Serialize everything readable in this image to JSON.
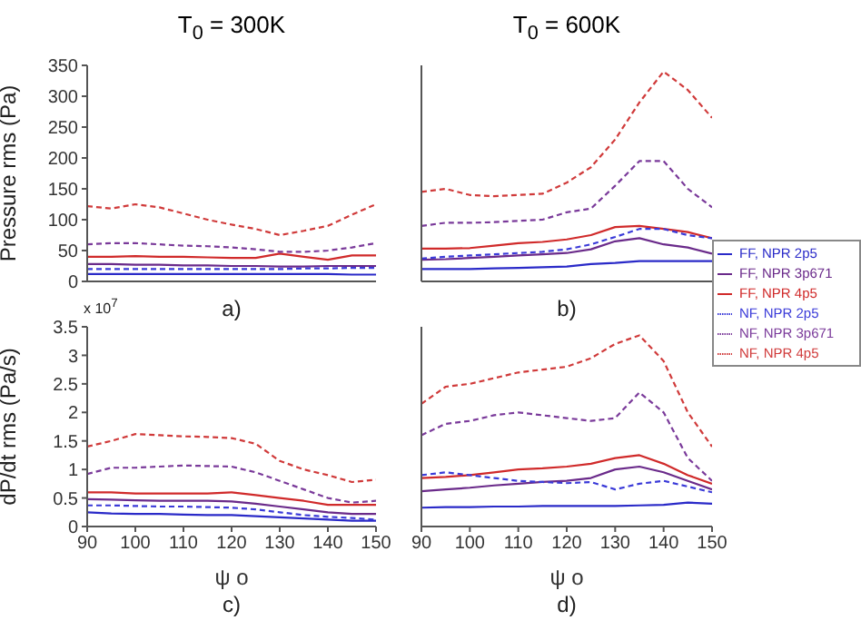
{
  "chart_data": [
    {
      "type": "line",
      "title": "T$_{0}$ = 300K",
      "ylabel": "Pressure rms (Pa)",
      "annotations": [
        "a)"
      ],
      "tick_labels": "y",
      "x": [
        90,
        95,
        100,
        105,
        110,
        115,
        120,
        125,
        130,
        135,
        140,
        145,
        150
      ],
      "xlim": [
        90,
        150
      ],
      "xticks": [
        90,
        100,
        110,
        120,
        130,
        140,
        150
      ],
      "ylim": [
        0,
        350
      ],
      "yticks": [
        0,
        50,
        100,
        150,
        200,
        250,
        300,
        350
      ],
      "series": [
        {
          "color": "#2a2ac8",
          "line_style": "solid",
          "values": [
            12,
            12,
            12,
            12,
            12,
            12,
            12,
            12,
            12,
            12,
            12,
            11,
            11
          ]
        },
        {
          "color": "#6a2a8a",
          "line_style": "solid",
          "values": [
            28,
            28,
            27,
            27,
            26,
            26,
            25,
            25,
            24,
            24,
            25,
            25,
            25
          ]
        },
        {
          "color": "#d02a2a",
          "line_style": "solid",
          "values": [
            40,
            40,
            41,
            40,
            40,
            39,
            38,
            38,
            45,
            40,
            35,
            42,
            42
          ]
        },
        {
          "color": "#3a3ad8",
          "line_style": "dashed",
          "values": [
            20,
            20,
            20,
            20,
            20,
            20,
            20,
            20,
            20,
            21,
            21,
            22,
            22
          ]
        },
        {
          "color": "#7a3a9a",
          "line_style": "dashed",
          "values": [
            60,
            62,
            62,
            60,
            58,
            57,
            55,
            52,
            48,
            48,
            50,
            55,
            62
          ]
        },
        {
          "color": "#d03a3a",
          "line_style": "dashed",
          "values": [
            122,
            118,
            125,
            120,
            110,
            100,
            92,
            85,
            75,
            82,
            90,
            108,
            125
          ]
        }
      ]
    },
    {
      "type": "line",
      "title": "T$_{0}$ = 600K",
      "annotations": [
        "b)"
      ],
      "tick_labels": false,
      "legend": "right",
      "x": [
        90,
        95,
        100,
        105,
        110,
        115,
        120,
        125,
        130,
        135,
        140,
        145,
        150
      ],
      "xlim": [
        90,
        150
      ],
      "xticks": [
        90,
        100,
        110,
        120,
        130,
        140,
        150
      ],
      "ylim": [
        0,
        350
      ],
      "yticks": [
        0,
        50,
        100,
        150,
        200,
        250,
        300,
        350
      ],
      "series": [
        {
          "name": "FF, NPR 2p5",
          "color": "#2a2ac8",
          "line_style": "solid",
          "values": [
            20,
            20,
            20,
            21,
            22,
            23,
            24,
            28,
            30,
            33,
            33,
            33,
            33
          ]
        },
        {
          "name": "FF, NPR 3p671",
          "color": "#6a2a8a",
          "line_style": "solid",
          "values": [
            35,
            36,
            38,
            40,
            42,
            44,
            46,
            52,
            65,
            70,
            60,
            55,
            45
          ]
        },
        {
          "name": "FF, NPR 4p5",
          "color": "#d02a2a",
          "line_style": "solid",
          "values": [
            53,
            53,
            54,
            58,
            62,
            64,
            68,
            75,
            88,
            90,
            85,
            80,
            70
          ]
        },
        {
          "name": "NF, NPR 2p5",
          "color": "#3a3ad8",
          "line_style": "dashed",
          "values": [
            37,
            40,
            42,
            44,
            46,
            48,
            52,
            60,
            72,
            85,
            85,
            75,
            70
          ]
        },
        {
          "name": "NF, NPR 3p671",
          "color": "#7a3a9a",
          "line_style": "dashed",
          "values": [
            90,
            95,
            95,
            96,
            98,
            100,
            112,
            118,
            155,
            195,
            195,
            150,
            120
          ]
        },
        {
          "name": "NF, NPR 4p5",
          "color": "#d03a3a",
          "line_style": "dashed",
          "values": [
            145,
            150,
            140,
            138,
            140,
            142,
            160,
            185,
            230,
            290,
            340,
            310,
            265
          ]
        }
      ]
    },
    {
      "type": "line",
      "xlabel": "ψ o",
      "ylabel": "dP/dt rms (Pa/s)",
      "annotations": [
        "x 10$^{7}$",
        "c)"
      ],
      "x": [
        90,
        95,
        100,
        105,
        110,
        115,
        120,
        125,
        130,
        135,
        140,
        145,
        150
      ],
      "xlim": [
        90,
        150
      ],
      "xticks": [
        90,
        100,
        110,
        120,
        130,
        140,
        150
      ],
      "ylim": [
        0,
        3.5
      ],
      "yticks": [
        0,
        0.5,
        1,
        1.5,
        2,
        2.5,
        3,
        3.5
      ],
      "series": [
        {
          "color": "#2a2ac8",
          "line_style": "solid",
          "values": [
            0.25,
            0.23,
            0.22,
            0.22,
            0.21,
            0.2,
            0.2,
            0.18,
            0.16,
            0.14,
            0.12,
            0.1,
            0.1
          ]
        },
        {
          "color": "#6a2a8a",
          "line_style": "solid",
          "values": [
            0.48,
            0.47,
            0.46,
            0.45,
            0.45,
            0.45,
            0.44,
            0.4,
            0.35,
            0.3,
            0.25,
            0.22,
            0.22
          ]
        },
        {
          "color": "#d02a2a",
          "line_style": "solid",
          "values": [
            0.6,
            0.6,
            0.58,
            0.58,
            0.58,
            0.58,
            0.6,
            0.55,
            0.5,
            0.45,
            0.38,
            0.38,
            0.38
          ]
        },
        {
          "color": "#3a3ad8",
          "line_style": "dashed",
          "values": [
            0.37,
            0.37,
            0.36,
            0.35,
            0.35,
            0.34,
            0.33,
            0.3,
            0.25,
            0.2,
            0.17,
            0.15,
            0.12
          ]
        },
        {
          "color": "#7a3a9a",
          "line_style": "dashed",
          "values": [
            0.92,
            1.03,
            1.03,
            1.05,
            1.07,
            1.06,
            1.05,
            0.95,
            0.8,
            0.65,
            0.5,
            0.42,
            0.45
          ]
        },
        {
          "color": "#d03a3a",
          "line_style": "dashed",
          "values": [
            1.4,
            1.5,
            1.62,
            1.6,
            1.58,
            1.57,
            1.55,
            1.45,
            1.15,
            1,
            0.9,
            0.78,
            0.82
          ]
        }
      ]
    },
    {
      "type": "line",
      "xlabel": "ψ o",
      "annotations": [
        "d)"
      ],
      "tick_labels": "x",
      "x": [
        90,
        95,
        100,
        105,
        110,
        115,
        120,
        125,
        130,
        135,
        140,
        145,
        150
      ],
      "xlim": [
        90,
        150
      ],
      "xticks": [
        90,
        100,
        110,
        120,
        130,
        140,
        150
      ],
      "ylim": [
        0,
        3.5
      ],
      "yticks": [
        0,
        0.5,
        1,
        1.5,
        2,
        2.5,
        3,
        3.5
      ],
      "series": [
        {
          "color": "#2a2ac8",
          "line_style": "solid",
          "values": [
            0.33,
            0.34,
            0.34,
            0.35,
            0.35,
            0.36,
            0.36,
            0.36,
            0.36,
            0.37,
            0.38,
            0.42,
            0.4
          ]
        },
        {
          "color": "#6a2a8a",
          "line_style": "solid",
          "values": [
            0.62,
            0.65,
            0.68,
            0.72,
            0.75,
            0.78,
            0.8,
            0.85,
            1,
            1.05,
            0.95,
            0.8,
            0.65
          ]
        },
        {
          "color": "#d02a2a",
          "line_style": "solid",
          "values": [
            0.85,
            0.87,
            0.9,
            0.95,
            1,
            1.02,
            1.05,
            1.1,
            1.2,
            1.25,
            1.1,
            0.9,
            0.75
          ]
        },
        {
          "color": "#3a3ad8",
          "line_style": "dashed",
          "values": [
            0.9,
            0.95,
            0.9,
            0.85,
            0.8,
            0.78,
            0.76,
            0.78,
            0.65,
            0.75,
            0.8,
            0.7,
            0.6
          ]
        },
        {
          "color": "#7a3a9a",
          "line_style": "dashed",
          "values": [
            1.6,
            1.8,
            1.85,
            1.95,
            2,
            1.95,
            1.9,
            1.85,
            1.9,
            2.35,
            2,
            1.2,
            0.8
          ]
        },
        {
          "color": "#d03a3a",
          "line_style": "dashed",
          "values": [
            2.15,
            2.45,
            2.5,
            2.6,
            2.7,
            2.75,
            2.8,
            2.95,
            3.2,
            3.35,
            2.9,
            2,
            1.4
          ]
        }
      ]
    }
  ]
}
